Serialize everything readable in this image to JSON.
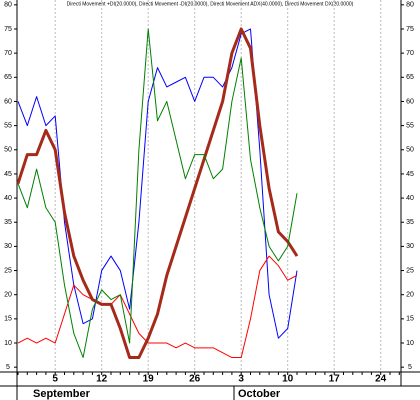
{
  "chart_data": {
    "type": "line",
    "title": "Directi Movement +DI(20.0000), Directi Movement -DI(20.0000), Directi Movement ADX(40.0000), Directi Movement DX(20.0000)",
    "categories": [
      null,
      null,
      null,
      null,
      "5",
      null,
      null,
      null,
      null,
      "12",
      null,
      null,
      null,
      null,
      "19",
      null,
      null,
      null,
      null,
      "26",
      null,
      null,
      null,
      null,
      "3",
      null,
      null,
      null,
      null,
      "10",
      null,
      null,
      null,
      null,
      "17",
      null,
      null,
      null,
      null,
      "24",
      null,
      null
    ],
    "month_labels": [
      "September",
      "October"
    ],
    "series": [
      {
        "color": "#0000ff",
        "width": 1,
        "values": [
          60,
          55,
          61,
          55,
          57,
          35,
          22,
          14,
          15,
          25,
          28,
          25,
          17,
          35,
          60,
          67,
          63,
          64,
          65,
          60,
          65,
          65,
          63,
          67,
          74,
          75,
          50,
          20,
          11,
          13,
          25,
          null,
          null,
          null,
          null,
          null,
          null,
          null,
          null,
          null,
          null,
          null
        ]
      },
      {
        "color": "#ff0000",
        "width": 1,
        "values": [
          10,
          11,
          10,
          11,
          10,
          16,
          22,
          20,
          19,
          18,
          18,
          20,
          16,
          12,
          10,
          10,
          10,
          9,
          10,
          9,
          9,
          9,
          8,
          7,
          7,
          15,
          25,
          28,
          26,
          23,
          24,
          null,
          null,
          null,
          null,
          null,
          null,
          null,
          null,
          null,
          null,
          null
        ]
      },
      {
        "color": "#a52a1a",
        "width": 3,
        "values": [
          43,
          49,
          49,
          54,
          50,
          37,
          28,
          23,
          19,
          18,
          18,
          13,
          7,
          7,
          11,
          16,
          24,
          30,
          36,
          42,
          48,
          54,
          60,
          70,
          75,
          71,
          55,
          42,
          33,
          31,
          28,
          null,
          null,
          null,
          null,
          null,
          null,
          null,
          null,
          null,
          null,
          null
        ]
      },
      {
        "color": "#008000",
        "width": 1,
        "values": [
          43,
          38,
          46,
          38,
          35,
          22,
          12,
          7,
          17,
          21,
          19,
          20,
          10,
          50,
          75,
          56,
          60,
          52,
          44,
          49,
          49,
          44,
          46,
          60,
          69,
          48,
          38,
          30,
          27,
          30,
          41,
          null,
          null,
          null,
          null,
          null,
          null,
          null,
          null,
          null,
          null,
          null
        ]
      }
    ],
    "ylim": [
      4,
      81
    ],
    "yticks": [
      5,
      10,
      15,
      20,
      25,
      30,
      35,
      40,
      45,
      50,
      55,
      60,
      65,
      70,
      75,
      80
    ],
    "grid": true
  }
}
